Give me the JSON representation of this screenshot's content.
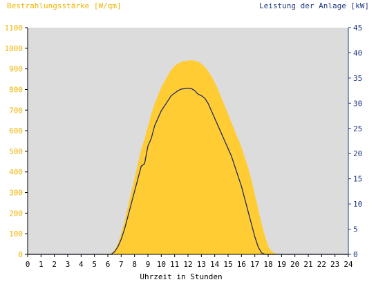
{
  "chart_data": {
    "type": "area",
    "left_axis_title": "Bestrahlungsstärke [W/qm]",
    "right_axis_title": "Leistung der Anlage [kW]",
    "xlabel": "Uhrzeit in Stunden",
    "xlim": [
      0,
      24
    ],
    "ylim_left": [
      0,
      1100
    ],
    "ylim_right": [
      0,
      45
    ],
    "x_ticks": [
      "0",
      "1",
      "2",
      "3",
      "4",
      "5",
      "6",
      "7",
      "8",
      "9",
      "10",
      "11",
      "12",
      "13",
      "14",
      "15",
      "16",
      "17",
      "18",
      "19",
      "20",
      "21",
      "22",
      "23",
      "24"
    ],
    "y_left_ticks": [
      "0",
      "100",
      "200",
      "300",
      "400",
      "500",
      "600",
      "700",
      "800",
      "900",
      "1000",
      "1100"
    ],
    "y_right_ticks": [
      "0",
      "5",
      "10",
      "15",
      "20",
      "25",
      "30",
      "35",
      "40",
      "45"
    ],
    "grid": false,
    "colors": {
      "irradiance_fill": "#ffcc33",
      "power_line": "#1a2a6b",
      "plot_background": "#dcdcdc",
      "left_axis_text": "#f0b400",
      "right_axis_text": "#1f3a80"
    },
    "series": [
      {
        "axis": "left",
        "style": "area",
        "x": [
          0,
          6.0,
          6.25,
          6.5,
          6.75,
          7.0,
          7.25,
          7.5,
          7.75,
          8.0,
          8.25,
          8.5,
          8.75,
          9.0,
          9.25,
          9.5,
          9.75,
          10.0,
          10.25,
          10.5,
          10.75,
          11.0,
          11.25,
          11.5,
          11.75,
          12.0,
          12.25,
          12.5,
          12.75,
          13.0,
          13.25,
          13.5,
          13.75,
          14.0,
          14.25,
          14.5,
          14.75,
          15.0,
          15.25,
          15.5,
          15.75,
          16.0,
          16.25,
          16.5,
          16.75,
          17.0,
          17.25,
          17.5,
          17.75,
          18.0,
          18.25,
          18.5,
          18.75,
          19.0,
          24
        ],
        "values": [
          0,
          0,
          5,
          20,
          50,
          100,
          160,
          230,
          300,
          370,
          440,
          510,
          560,
          620,
          680,
          730,
          770,
          810,
          840,
          870,
          895,
          915,
          925,
          935,
          938,
          940,
          942,
          940,
          935,
          925,
          910,
          890,
          865,
          835,
          800,
          760,
          720,
          680,
          640,
          600,
          560,
          520,
          470,
          420,
          360,
          290,
          220,
          150,
          90,
          40,
          15,
          5,
          0,
          0,
          0
        ]
      },
      {
        "axis": "right",
        "style": "line",
        "x": [
          0,
          6.25,
          6.5,
          6.75,
          7.0,
          7.25,
          7.5,
          7.75,
          8.0,
          8.25,
          8.5,
          8.75,
          9.0,
          9.25,
          9.5,
          9.75,
          10.0,
          10.25,
          10.5,
          10.75,
          11.0,
          11.25,
          11.5,
          11.75,
          12.0,
          12.25,
          12.5,
          12.75,
          13.0,
          13.25,
          13.5,
          13.75,
          14.0,
          14.25,
          14.5,
          14.75,
          15.0,
          15.25,
          15.5,
          15.75,
          16.0,
          16.25,
          16.5,
          16.75,
          17.0,
          17.25,
          17.5,
          17.75,
          18.0,
          18.25,
          18.5,
          18.75,
          24
        ],
        "values": [
          0,
          0,
          0.5,
          1.5,
          3.0,
          5.0,
          7.5,
          10.0,
          12.5,
          15.0,
          17.5,
          18.0,
          21.5,
          23.0,
          25.5,
          27.0,
          28.5,
          29.5,
          30.5,
          31.5,
          32.0,
          32.5,
          32.8,
          32.9,
          33.0,
          32.9,
          32.5,
          31.8,
          31.5,
          31.0,
          30.0,
          28.5,
          27.0,
          25.5,
          24.0,
          22.5,
          21.0,
          19.5,
          17.5,
          15.5,
          13.5,
          11.0,
          8.5,
          6.0,
          3.5,
          1.5,
          0.3,
          0,
          0,
          0,
          0,
          0,
          0
        ]
      }
    ]
  }
}
